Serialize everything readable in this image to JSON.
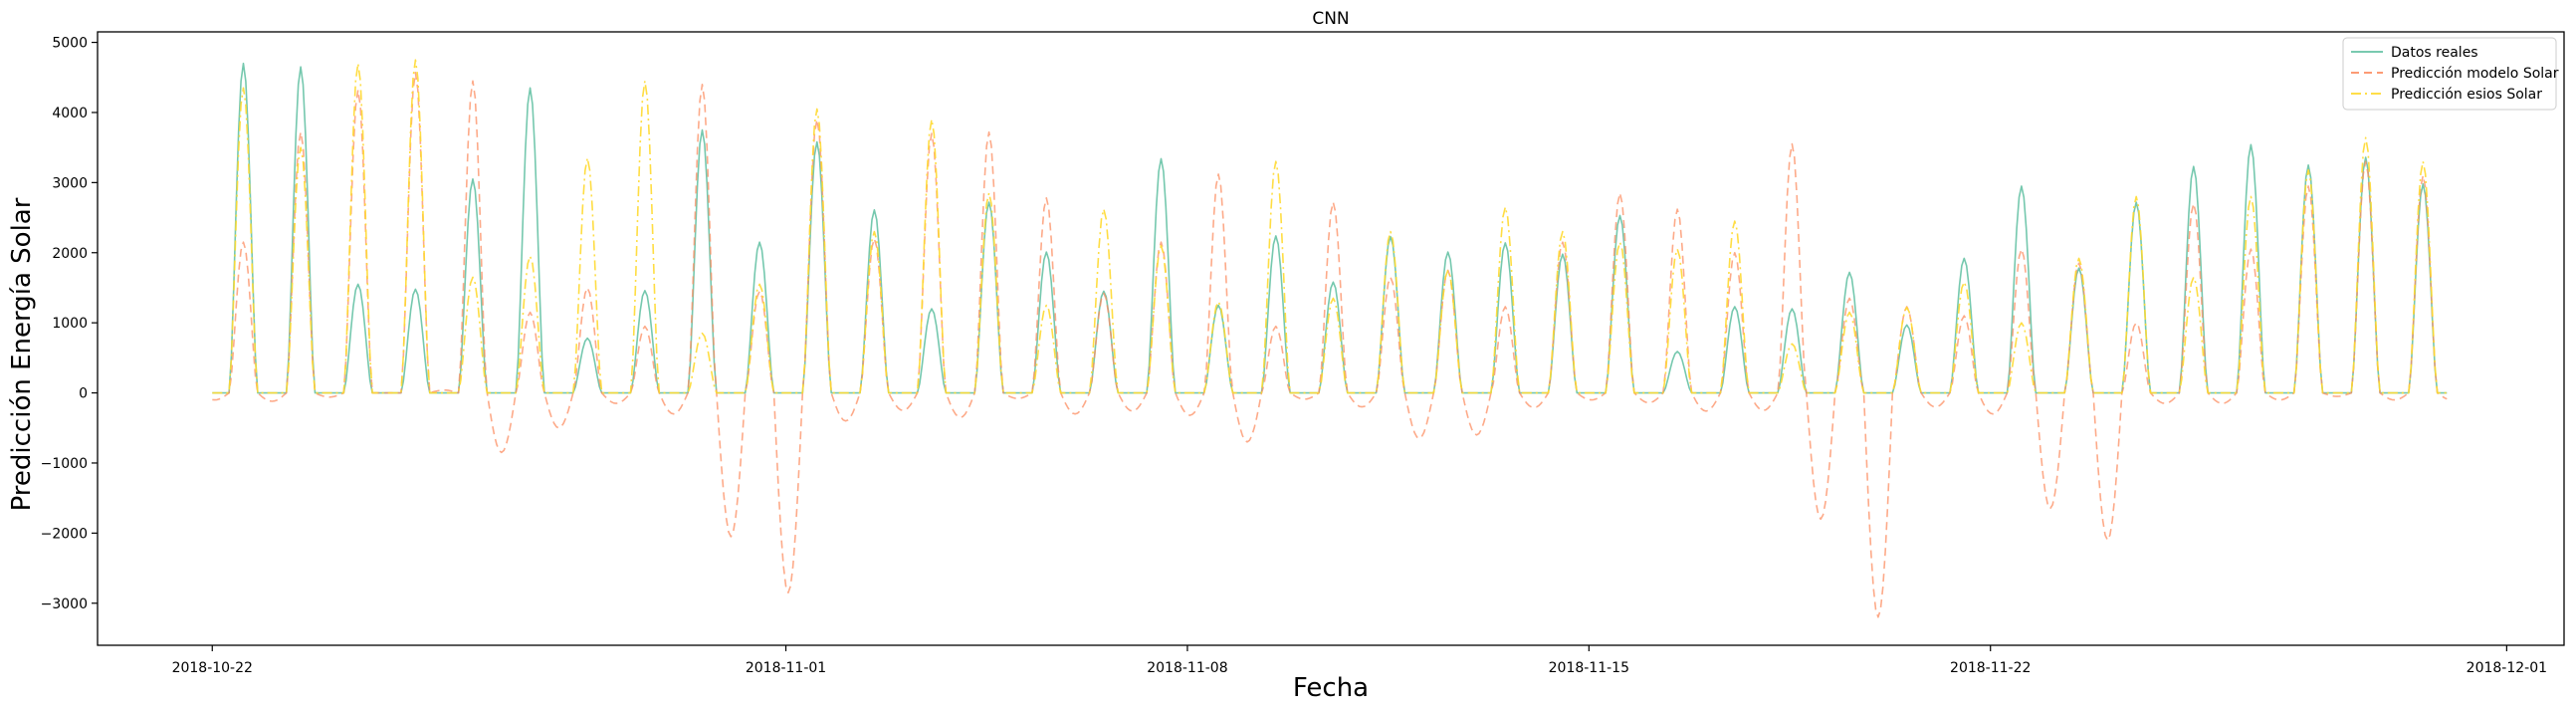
{
  "chart_data": {
    "type": "line",
    "title": "CNN",
    "xlabel": "Fecha",
    "ylabel": "Predicción Energía Solar",
    "x_axis": {
      "start_date": "2018-10-20",
      "end_date": "2018-12-02",
      "ticks": [
        "2018-10-22",
        "2018-11-01",
        "2018-11-08",
        "2018-11-15",
        "2018-11-22",
        "2018-12-01"
      ],
      "grid": false
    },
    "y_axis": {
      "min": -3600,
      "max": 5150,
      "ticks": [
        -3000,
        -2000,
        -1000,
        0,
        1000,
        2000,
        3000,
        4000,
        5000
      ],
      "tick_labels": [
        "−3000",
        "−2000",
        "−1000",
        "0",
        "1000",
        "2000",
        "3000",
        "4000",
        "5000"
      ],
      "grid": false
    },
    "legend": {
      "position": "top-right"
    },
    "series": [
      {
        "name": "Datos reales",
        "color": "#66c2a5",
        "style": "solid",
        "resolution": "hourly",
        "start": "2018-10-22",
        "daily_peaks": [
          4700,
          4650,
          1550,
          1480,
          3050,
          4350,
          780,
          1460,
          3750,
          2150,
          3580,
          2610,
          1200,
          2720,
          2010,
          1450,
          3340,
          1250,
          2240,
          1580,
          2230,
          2010,
          2140,
          1980,
          2530,
          590,
          1230,
          1200,
          1720,
          970,
          1920,
          2950,
          1780,
          2720,
          3230,
          3540,
          3250,
          3360,
          2980
        ]
      },
      {
        "name": "Predicción modelo Solar",
        "color": "#fc8d62",
        "style": "dashed",
        "resolution": "hourly",
        "start": "2018-10-22",
        "daily_peaks": [
          2150,
          3720,
          4320,
          4570,
          4450,
          1150,
          1500,
          950,
          4400,
          1450,
          3900,
          2200,
          3700,
          3720,
          2780,
          1420,
          2150,
          3120,
          950,
          2720,
          1650,
          1750,
          1230,
          2150,
          2850,
          2620,
          2000,
          3550,
          1350,
          1230,
          1100,
          2050,
          1850,
          1000,
          2700,
          2050,
          2950,
          3300,
          3100
        ],
        "daily_troughs": [
          -100,
          -120,
          -60,
          0,
          40,
          -850,
          -500,
          -150,
          -300,
          -2050,
          -2850,
          -400,
          -250,
          -350,
          -80,
          -300,
          -260,
          -320,
          -700,
          -90,
          -200,
          -650,
          -600,
          -210,
          -100,
          -140,
          -260,
          -250,
          -1800,
          -3200,
          -200,
          -300,
          -1650,
          -2100,
          -150,
          -150,
          -100,
          -50,
          -100
        ]
      },
      {
        "name": "Predicción esios Solar",
        "color": "#ffd92f",
        "style": "dashdot",
        "resolution": "hourly",
        "start": "2018-10-22",
        "daily_peaks": [
          4350,
          3500,
          4700,
          4750,
          1650,
          1950,
          3350,
          4450,
          850,
          1550,
          4050,
          2300,
          3900,
          2850,
          1250,
          2620,
          2100,
          1300,
          3300,
          1350,
          2300,
          1750,
          2650,
          2300,
          2150,
          2050,
          2450,
          700,
          1150,
          1220,
          1580,
          1000,
          1920,
          2800,
          1650,
          2800,
          3180,
          3640,
          3300
        ]
      }
    ]
  }
}
